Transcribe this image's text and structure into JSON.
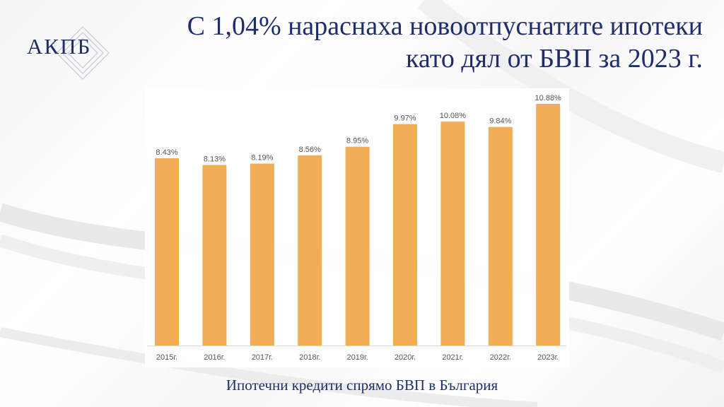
{
  "logo": {
    "text": "АКПБ"
  },
  "title": {
    "line1": "С 1,04% нараснаха новоотпуснатите ипотеки",
    "line2": "като дял от БВП за 2023 г."
  },
  "caption": "Ипотечни кредити спрямо БВП в България",
  "colors": {
    "bar": "#f2ae55",
    "title": "#1f2d6b",
    "label": "#555555"
  },
  "chart_data": {
    "type": "bar",
    "categories": [
      "2015г.",
      "2016г.",
      "2017г.",
      "2018г.",
      "2019г.",
      "2020г.",
      "2021г.",
      "2022г.",
      "2023г."
    ],
    "values": [
      8.43,
      8.13,
      8.19,
      8.56,
      8.95,
      9.97,
      10.08,
      9.84,
      10.88
    ],
    "data_labels": [
      "8.43%",
      "8.13%",
      "8.19%",
      "8.56%",
      "8.95%",
      "9.97%",
      "10.08%",
      "9.84%",
      "10.88%"
    ],
    "title": "Ипотечни кредити спрямо БВП в България",
    "ylim": [
      0,
      10.88
    ],
    "grid": false,
    "legend": "none"
  }
}
